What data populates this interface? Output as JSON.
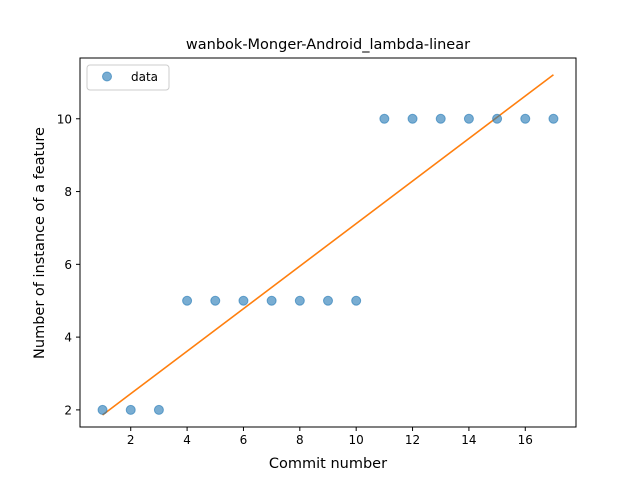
{
  "chart_data": {
    "type": "scatter",
    "title": "wanbok-Monger-Android_lambda-linear",
    "xlabel": "Commit number",
    "ylabel": "Number of instance of a feature",
    "xlim": [
      0.2,
      17.8
    ],
    "ylim": [
      1.53,
      11.67
    ],
    "xticks": [
      2,
      4,
      6,
      8,
      10,
      12,
      14,
      16
    ],
    "yticks": [
      2,
      4,
      6,
      8,
      10
    ],
    "legend_position": "top-left",
    "grid": false,
    "series": [
      {
        "name": "data",
        "kind": "markers",
        "color": "#1f77b4",
        "x": [
          1,
          2,
          3,
          4,
          5,
          6,
          7,
          8,
          9,
          10,
          11,
          12,
          13,
          14,
          15,
          16,
          17
        ],
        "y": [
          2,
          2,
          2,
          5,
          5,
          5,
          5,
          5,
          5,
          5,
          10,
          10,
          10,
          10,
          10,
          10,
          10
        ]
      },
      {
        "kind": "line",
        "color": "#ff7f0e",
        "x": [
          1,
          17
        ],
        "y": [
          1.86,
          11.21
        ]
      }
    ]
  }
}
